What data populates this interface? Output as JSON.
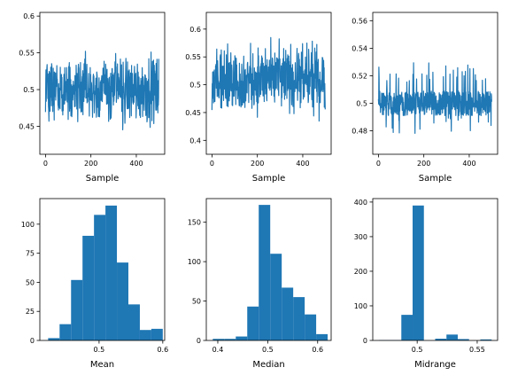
{
  "chart_data": [
    {
      "type": "line",
      "xlabel": "Sample",
      "xticks": [
        0,
        200,
        400
      ],
      "yticks": [
        0.45,
        0.5,
        0.55,
        0.6
      ],
      "xlim": [
        -25,
        525
      ],
      "ylim": [
        0.412,
        0.605
      ],
      "n": 500,
      "center": 0.5,
      "spread": 0.03,
      "min": 0.42,
      "max": 0.595,
      "color": "#1f77b4"
    },
    {
      "type": "line",
      "xlabel": "Sample",
      "xticks": [
        0,
        200,
        400
      ],
      "yticks": [
        0.4,
        0.45,
        0.5,
        0.55,
        0.6
      ],
      "xlim": [
        -25,
        525
      ],
      "ylim": [
        0.375,
        0.63
      ],
      "n": 500,
      "center": 0.51,
      "spread": 0.04,
      "min": 0.39,
      "max": 0.618,
      "color": "#1f77b4"
    },
    {
      "type": "line",
      "xlabel": "Sample",
      "xticks": [
        0,
        200,
        400
      ],
      "yticks": [
        0.48,
        0.5,
        0.52,
        0.54,
        0.56
      ],
      "xlim": [
        -25,
        525
      ],
      "ylim": [
        0.463,
        0.566
      ],
      "n": 500,
      "center": 0.5,
      "spread": 0.003,
      "min": 0.468,
      "max": 0.562,
      "color": "#1f77b4"
    },
    {
      "type": "bar",
      "xlabel": "Mean",
      "xticks": [
        0.5,
        0.6
      ],
      "yticks": [
        0,
        25,
        50,
        75,
        100
      ],
      "xlim": [
        0.407,
        0.603
      ],
      "ylim": [
        0,
        122
      ],
      "bin_edges": [
        0.42,
        0.438,
        0.456,
        0.474,
        0.492,
        0.51,
        0.528,
        0.546,
        0.564,
        0.582,
        0.6
      ],
      "values": [
        2,
        14,
        52,
        90,
        108,
        116,
        67,
        31,
        9,
        10
      ],
      "color": "#1f77b4"
    },
    {
      "type": "bar",
      "xlabel": "Median",
      "xticks": [
        0.4,
        0.5,
        0.6
      ],
      "yticks": [
        0,
        50,
        100,
        150
      ],
      "xlim": [
        0.377,
        0.627
      ],
      "ylim": [
        0,
        180
      ],
      "bin_edges": [
        0.39,
        0.413,
        0.436,
        0.459,
        0.482,
        0.505,
        0.528,
        0.551,
        0.574,
        0.597,
        0.62
      ],
      "values": [
        2,
        2,
        5,
        43,
        172,
        110,
        67,
        55,
        33,
        8
      ],
      "color": "#1f77b4"
    },
    {
      "type": "bar",
      "xlabel": "Midrange",
      "xticks": [
        0.5,
        0.55
      ],
      "yticks": [
        0,
        100,
        200,
        300,
        400
      ],
      "xlim": [
        0.463,
        0.567
      ],
      "ylim": [
        0,
        410
      ],
      "bin_edges": [
        0.468,
        0.4774,
        0.4868,
        0.4962,
        0.5056,
        0.515,
        0.5244,
        0.5338,
        0.5432,
        0.5526,
        0.562
      ],
      "values": [
        1,
        1,
        74,
        390,
        0,
        5,
        17,
        4,
        0,
        3
      ],
      "color": "#1f77b4"
    }
  ]
}
